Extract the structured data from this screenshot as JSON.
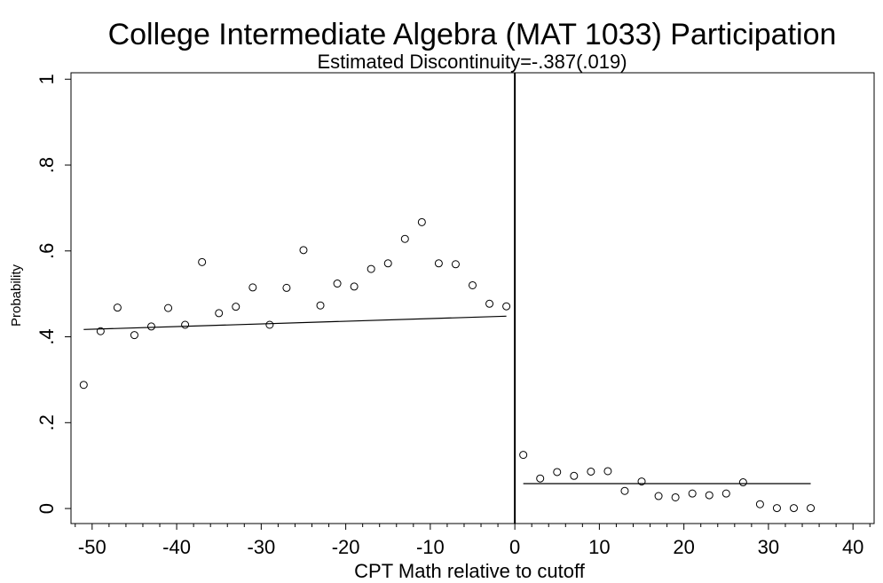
{
  "chart_data": {
    "type": "scatter",
    "title": "College Intermediate Algebra (MAT 1033) Participation",
    "subtitle": "Estimated Discontinuity=-.387(.019)",
    "xlabel": "CPT Math relative to cutoff",
    "ylabel": "Probability",
    "xlim": [
      -52.5,
      42.5
    ],
    "ylim": [
      -0.035,
      1.015
    ],
    "xticks": [
      -50,
      -40,
      -30,
      -20,
      -10,
      0,
      10,
      20,
      30,
      40
    ],
    "xtick_labels": [
      "-50",
      "-40",
      "-30",
      "-20",
      "-10",
      "0",
      "10",
      "20",
      "30",
      "40"
    ],
    "yticks": [
      0,
      0.2,
      0.4,
      0.6,
      0.8,
      1
    ],
    "ytick_labels": [
      "0",
      ".2",
      ".4",
      ".6",
      ".8",
      "1"
    ],
    "grid": false,
    "cutoff_x": 0,
    "points": {
      "x": [
        -51,
        -49,
        -47,
        -45,
        -43,
        -41,
        -39,
        -37,
        -35,
        -33,
        -31,
        -29,
        -27,
        -25,
        -23,
        -21,
        -19,
        -17,
        -15,
        -13,
        -11,
        -9,
        -7,
        -5,
        -3,
        -1,
        1,
        3,
        5,
        7,
        9,
        11,
        13,
        15,
        17,
        19,
        21,
        23,
        25,
        27,
        29,
        31,
        33,
        35
      ],
      "y": [
        0.288,
        0.413,
        0.468,
        0.404,
        0.424,
        0.467,
        0.428,
        0.574,
        0.455,
        0.47,
        0.515,
        0.428,
        0.514,
        0.602,
        0.473,
        0.524,
        0.517,
        0.558,
        0.571,
        0.628,
        0.667,
        0.571,
        0.569,
        0.52,
        0.477,
        0.471,
        0.125,
        0.07,
        0.085,
        0.076,
        0.086,
        0.087,
        0.041,
        0.063,
        0.029,
        0.026,
        0.035,
        0.031,
        0.035,
        0.061,
        0.01,
        0.001,
        0.001,
        0.001
      ]
    },
    "fit_lines": [
      {
        "x": [
          -51,
          -1
        ],
        "y": [
          0.417,
          0.448
        ]
      },
      {
        "x": [
          1,
          35
        ],
        "y": [
          0.058,
          0.058
        ]
      }
    ]
  }
}
